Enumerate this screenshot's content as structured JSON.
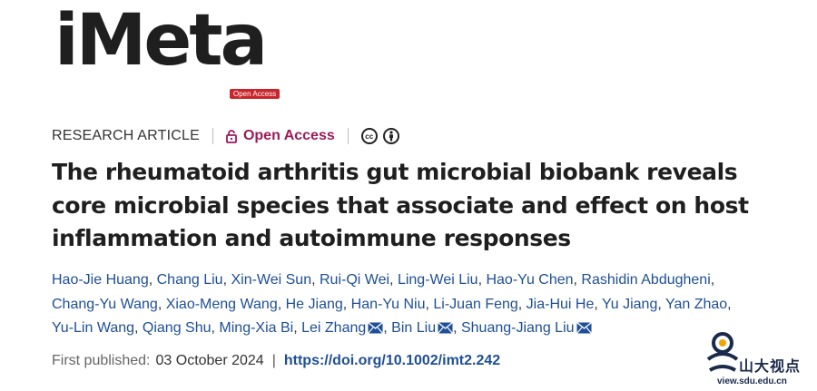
{
  "logo": {
    "text": "iMeta",
    "badge": "Open Access"
  },
  "meta": {
    "article_type": "RESEARCH ARTICLE",
    "open_access": "Open Access",
    "license_icons": [
      "cc-icon",
      "attribution-icon"
    ]
  },
  "title": "The rheumatoid arthritis gut microbial biobank reveals core microbial species that associate and effect on host inflammation and autoimmune responses",
  "authors": [
    {
      "name": "Hao-Jie Huang",
      "email": false
    },
    {
      "name": "Chang Liu",
      "email": false
    },
    {
      "name": "Xin-Wei Sun",
      "email": false
    },
    {
      "name": "Rui-Qi Wei",
      "email": false
    },
    {
      "name": "Ling-Wei Liu",
      "email": false
    },
    {
      "name": "Hao-Yu Chen",
      "email": false
    },
    {
      "name": "Rashidin Abdugheni",
      "email": false
    },
    {
      "name": "Chang-Yu Wang",
      "email": false
    },
    {
      "name": "Xiao-Meng Wang",
      "email": false
    },
    {
      "name": "He Jiang",
      "email": false
    },
    {
      "name": "Han-Yu Niu",
      "email": false
    },
    {
      "name": "Li-Juan Feng",
      "email": false
    },
    {
      "name": "Jia-Hui He",
      "email": false
    },
    {
      "name": "Yu Jiang",
      "email": false
    },
    {
      "name": "Yan Zhao",
      "email": false
    },
    {
      "name": "Yu-Lin Wang",
      "email": false
    },
    {
      "name": "Qiang Shu",
      "email": false
    },
    {
      "name": "Ming-Xia Bi",
      "email": false
    },
    {
      "name": "Lei Zhang",
      "email": true
    },
    {
      "name": "Bin Liu",
      "email": true
    },
    {
      "name": "Shuang-Jiang Liu",
      "email": true
    }
  ],
  "published": {
    "label": "First published:",
    "date": "03 October 2024",
    "separator": "|",
    "doi": "https://doi.org/10.1002/imt2.242"
  },
  "watermark": {
    "text": "山大视点",
    "url": "view.sdu.edu.cn"
  },
  "colors": {
    "link": "#1f4f94",
    "open_access": "#9b1b5a",
    "logo_badge": "#c8262c"
  }
}
